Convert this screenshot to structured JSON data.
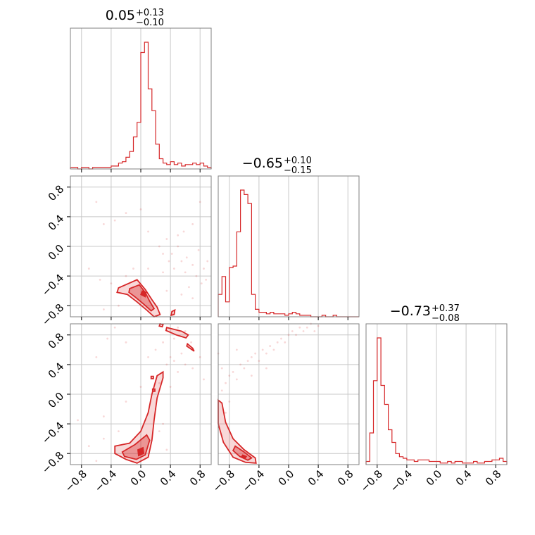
{
  "chart_data": {
    "type": "corner",
    "color": "#d62728",
    "parameters": [
      {
        "median": "0.05",
        "plus": "+0.13",
        "minus": "−0.10"
      },
      {
        "median": "−0.65",
        "plus": "+0.10",
        "minus": "−0.15"
      },
      {
        "median": "−0.73",
        "plus": "+0.37",
        "minus": "−0.08"
      }
    ],
    "range": [
      -0.95,
      0.95
    ],
    "ticks": [
      -0.8,
      -0.4,
      0.0,
      0.4,
      0.8
    ],
    "tick_labels": [
      "−0.8",
      "−0.4",
      "0.0",
      "0.4",
      "0.8"
    ],
    "grid": true,
    "histograms": [
      {
        "bin_edges": [
          -0.95,
          -0.9,
          -0.85,
          -0.8,
          -0.75,
          -0.7,
          -0.65,
          -0.6,
          -0.55,
          -0.5,
          -0.45,
          -0.4,
          -0.35,
          -0.3,
          -0.25,
          -0.2,
          -0.15,
          -0.1,
          -0.05,
          0.0,
          0.05,
          0.1,
          0.15,
          0.2,
          0.25,
          0.3,
          0.35,
          0.4,
          0.45,
          0.5,
          0.55,
          0.6,
          0.65,
          0.7,
          0.75,
          0.8,
          0.85,
          0.9,
          0.95
        ],
        "counts": [
          0.01,
          0.01,
          0.0,
          0.01,
          0.01,
          0.0,
          0.01,
          0.01,
          0.01,
          0.01,
          0.01,
          0.02,
          0.02,
          0.04,
          0.05,
          0.08,
          0.12,
          0.22,
          0.32,
          0.8,
          0.87,
          0.55,
          0.4,
          0.17,
          0.07,
          0.04,
          0.03,
          0.05,
          0.03,
          0.04,
          0.02,
          0.03,
          0.03,
          0.04,
          0.03,
          0.04,
          0.02,
          0.01
        ]
      },
      {
        "bin_edges": [
          -0.95,
          -0.9,
          -0.85,
          -0.8,
          -0.75,
          -0.7,
          -0.65,
          -0.6,
          -0.55,
          -0.5,
          -0.45,
          -0.4,
          -0.35,
          -0.3,
          -0.25,
          -0.2,
          -0.15,
          -0.1,
          -0.05,
          0.0,
          0.05,
          0.1,
          0.15,
          0.2,
          0.25,
          0.3,
          0.35,
          0.4,
          0.45,
          0.5,
          0.55,
          0.6,
          0.65,
          0.7,
          0.75,
          0.8,
          0.85,
          0.9,
          0.95
        ],
        "counts": [
          0.15,
          0.27,
          0.1,
          0.33,
          0.34,
          0.57,
          0.85,
          0.82,
          0.76,
          0.15,
          0.05,
          0.03,
          0.03,
          0.02,
          0.03,
          0.02,
          0.02,
          0.02,
          0.01,
          0.02,
          0.03,
          0.02,
          0.01,
          0.01,
          0.01,
          0.0,
          0.0,
          0.0,
          0.01,
          0.0,
          0.0,
          0.01,
          0.0,
          0.0,
          0.0,
          0.0,
          0.0,
          0.0
        ]
      },
      {
        "bin_edges": [
          -0.95,
          -0.9,
          -0.85,
          -0.8,
          -0.75,
          -0.7,
          -0.65,
          -0.6,
          -0.55,
          -0.5,
          -0.45,
          -0.4,
          -0.35,
          -0.3,
          -0.25,
          -0.2,
          -0.15,
          -0.1,
          -0.05,
          0.0,
          0.05,
          0.1,
          0.15,
          0.2,
          0.25,
          0.3,
          0.35,
          0.4,
          0.45,
          0.5,
          0.55,
          0.6,
          0.65,
          0.7,
          0.75,
          0.8,
          0.85,
          0.9,
          0.95
        ],
        "counts": [
          0.02,
          0.2,
          0.53,
          0.8,
          0.5,
          0.38,
          0.22,
          0.14,
          0.07,
          0.05,
          0.04,
          0.03,
          0.03,
          0.02,
          0.03,
          0.03,
          0.03,
          0.02,
          0.02,
          0.02,
          0.01,
          0.01,
          0.02,
          0.01,
          0.02,
          0.02,
          0.01,
          0.01,
          0.01,
          0.02,
          0.01,
          0.01,
          0.02,
          0.02,
          0.03,
          0.03,
          0.04,
          0.02
        ]
      }
    ],
    "scatter_panels": [
      {
        "row": 1,
        "col": 0,
        "contours": {
          "outer": [
            [
              -0.3,
              -0.56
            ],
            [
              -0.05,
              -0.45
            ],
            [
              0.06,
              -0.58
            ],
            [
              0.15,
              -0.72
            ],
            [
              0.22,
              -0.82
            ],
            [
              0.26,
              -0.92
            ],
            [
              0.18,
              -0.95
            ],
            [
              0.08,
              -0.86
            ],
            [
              -0.05,
              -0.75
            ],
            [
              -0.18,
              -0.65
            ],
            [
              -0.32,
              -0.62
            ]
          ],
          "inner": [
            [
              -0.15,
              -0.57
            ],
            [
              -0.02,
              -0.52
            ],
            [
              0.06,
              -0.62
            ],
            [
              0.12,
              -0.74
            ],
            [
              0.18,
              -0.84
            ],
            [
              0.14,
              -0.87
            ],
            [
              0.04,
              -0.78
            ],
            [
              -0.08,
              -0.68
            ],
            [
              -0.16,
              -0.62
            ]
          ],
          "core": [
            [
              0.02,
              -0.6
            ],
            [
              0.07,
              -0.62
            ],
            [
              0.06,
              -0.68
            ],
            [
              0.0,
              -0.65
            ]
          ],
          "islands": [
            [
              [
                0.42,
                -0.88
              ],
              [
                0.46,
                -0.86
              ],
              [
                0.45,
                -0.92
              ],
              [
                0.41,
                -0.93
              ]
            ]
          ]
        },
        "samples": [
          [
            0.8,
            0.6
          ],
          [
            -0.6,
            0.6
          ],
          [
            -0.5,
            0.3
          ],
          [
            -0.35,
            0.35
          ],
          [
            0.1,
            0.2
          ],
          [
            0.3,
            -0.1
          ],
          [
            0.42,
            -0.1
          ],
          [
            0.45,
            -0.3
          ],
          [
            0.5,
            0.0
          ],
          [
            0.55,
            -0.2
          ],
          [
            0.6,
            -0.35
          ],
          [
            0.62,
            -0.15
          ],
          [
            0.7,
            -0.25
          ],
          [
            0.75,
            -0.4
          ],
          [
            0.78,
            -0.05
          ],
          [
            0.82,
            -0.5
          ],
          [
            0.85,
            -0.3
          ],
          [
            0.88,
            -0.45
          ],
          [
            0.5,
            0.15
          ],
          [
            0.35,
            0.1
          ],
          [
            0.38,
            -0.2
          ],
          [
            0.65,
            -0.55
          ],
          [
            0.7,
            -0.7
          ],
          [
            0.3,
            -0.35
          ],
          [
            0.1,
            -0.3
          ],
          [
            -0.1,
            -0.3
          ],
          [
            -0.2,
            -0.4
          ],
          [
            -0.4,
            -0.5
          ],
          [
            -0.55,
            -0.45
          ],
          [
            -0.7,
            -0.3
          ],
          [
            -0.2,
            0.45
          ],
          [
            0.0,
            0.5
          ],
          [
            0.25,
            0.0
          ],
          [
            0.58,
            0.2
          ],
          [
            0.9,
            -0.2
          ],
          [
            -0.3,
            -0.8
          ],
          [
            -0.5,
            -0.85
          ],
          [
            0.35,
            -0.6
          ],
          [
            0.55,
            -0.65
          ],
          [
            0.7,
            0.3
          ]
        ]
      },
      {
        "row": 2,
        "col": 0,
        "contours": {
          "outer": [
            [
              -0.35,
              -0.7
            ],
            [
              -0.15,
              -0.66
            ],
            [
              0.0,
              -0.5
            ],
            [
              0.1,
              -0.25
            ],
            [
              0.15,
              0.0
            ],
            [
              0.22,
              0.25
            ],
            [
              0.3,
              0.3
            ],
            [
              0.3,
              0.22
            ],
            [
              0.22,
              -0.05
            ],
            [
              0.18,
              -0.35
            ],
            [
              0.15,
              -0.62
            ],
            [
              0.1,
              -0.85
            ],
            [
              -0.05,
              -0.93
            ],
            [
              -0.2,
              -0.88
            ],
            [
              -0.35,
              -0.8
            ]
          ],
          "inner": [
            [
              -0.25,
              -0.78
            ],
            [
              -0.08,
              -0.68
            ],
            [
              0.08,
              -0.55
            ],
            [
              0.12,
              -0.62
            ],
            [
              0.06,
              -0.82
            ],
            [
              -0.06,
              -0.88
            ],
            [
              -0.22,
              -0.84
            ]
          ],
          "core": [
            [
              -0.04,
              -0.75
            ],
            [
              0.03,
              -0.72
            ],
            [
              0.04,
              -0.8
            ],
            [
              -0.03,
              -0.83
            ]
          ],
          "islands": [
            [
              [
                0.35,
                0.9
              ],
              [
                0.55,
                0.85
              ],
              [
                0.64,
                0.8
              ],
              [
                0.61,
                0.76
              ],
              [
                0.48,
                0.8
              ],
              [
                0.34,
                0.86
              ]
            ],
            [
              [
                0.62,
                0.65
              ],
              [
                0.72,
                0.58
              ],
              [
                0.7,
                0.62
              ],
              [
                0.63,
                0.68
              ]
            ],
            [
              [
                0.26,
                0.95
              ],
              [
                0.3,
                0.94
              ],
              [
                0.29,
                0.91
              ],
              [
                0.25,
                0.92
              ]
            ],
            [
              [
                0.14,
                0.24
              ],
              [
                0.17,
                0.24
              ],
              [
                0.17,
                0.21
              ],
              [
                0.14,
                0.21
              ]
            ],
            [
              [
                0.16,
                0.07
              ],
              [
                0.19,
                0.07
              ],
              [
                0.19,
                0.04
              ],
              [
                0.16,
                0.04
              ]
            ]
          ]
        },
        "samples": [
          [
            -0.6,
            0.5
          ],
          [
            -0.45,
            0.75
          ],
          [
            -0.35,
            0.9
          ],
          [
            -0.2,
            0.7
          ],
          [
            0.1,
            0.5
          ],
          [
            0.2,
            0.6
          ],
          [
            0.3,
            0.7
          ],
          [
            0.4,
            0.5
          ],
          [
            0.45,
            0.45
          ],
          [
            0.5,
            0.3
          ],
          [
            0.55,
            0.55
          ],
          [
            0.6,
            0.4
          ],
          [
            0.7,
            0.35
          ],
          [
            0.8,
            0.5
          ],
          [
            0.85,
            0.2
          ],
          [
            0.4,
            0.1
          ],
          [
            0.2,
            -0.2
          ],
          [
            0.3,
            -0.4
          ],
          [
            -0.3,
            -0.5
          ],
          [
            -0.5,
            -0.6
          ],
          [
            -0.7,
            -0.7
          ],
          [
            -0.5,
            -0.3
          ],
          [
            -0.2,
            -0.1
          ],
          [
            0.0,
            0.1
          ],
          [
            0.45,
            0.75
          ],
          [
            0.6,
            0.85
          ],
          [
            0.68,
            0.7
          ],
          [
            0.5,
            0.9
          ],
          [
            0.35,
            0.4
          ],
          [
            0.25,
            0.15
          ],
          [
            -0.85,
            -0.35
          ],
          [
            -0.6,
            -0.9
          ],
          [
            0.25,
            -0.5
          ],
          [
            0.35,
            -0.75
          ]
        ]
      },
      {
        "row": 2,
        "col": 1,
        "contours": {
          "outer": [
            [
              -0.95,
              -0.08
            ],
            [
              -0.9,
              -0.12
            ],
            [
              -0.85,
              -0.38
            ],
            [
              -0.75,
              -0.6
            ],
            [
              -0.6,
              -0.75
            ],
            [
              -0.45,
              -0.86
            ],
            [
              -0.44,
              -0.93
            ],
            [
              -0.58,
              -0.92
            ],
            [
              -0.75,
              -0.85
            ],
            [
              -0.88,
              -0.65
            ],
            [
              -0.95,
              -0.4
            ]
          ],
          "inner": [
            [
              -0.72,
              -0.7
            ],
            [
              -0.6,
              -0.78
            ],
            [
              -0.5,
              -0.86
            ],
            [
              -0.55,
              -0.89
            ],
            [
              -0.66,
              -0.84
            ],
            [
              -0.75,
              -0.76
            ]
          ],
          "core": [
            [
              -0.62,
              -0.82
            ],
            [
              -0.57,
              -0.84
            ],
            [
              -0.59,
              -0.87
            ],
            [
              -0.64,
              -0.85
            ]
          ],
          "islands": []
        },
        "samples": [
          [
            -0.9,
            0.05
          ],
          [
            -0.85,
            0.15
          ],
          [
            -0.8,
            0.25
          ],
          [
            -0.75,
            0.3
          ],
          [
            -0.7,
            0.2
          ],
          [
            -0.65,
            0.4
          ],
          [
            -0.6,
            0.35
          ],
          [
            -0.55,
            0.45
          ],
          [
            -0.5,
            0.5
          ],
          [
            -0.45,
            0.55
          ],
          [
            -0.4,
            0.45
          ],
          [
            -0.35,
            0.6
          ],
          [
            -0.3,
            0.55
          ],
          [
            -0.25,
            0.65
          ],
          [
            -0.2,
            0.6
          ],
          [
            -0.15,
            0.7
          ],
          [
            -0.1,
            0.75
          ],
          [
            -0.05,
            0.7
          ],
          [
            0.0,
            0.8
          ],
          [
            0.05,
            0.85
          ],
          [
            0.1,
            0.8
          ],
          [
            0.15,
            0.9
          ],
          [
            0.2,
            0.85
          ],
          [
            0.25,
            0.9
          ],
          [
            0.3,
            0.95
          ],
          [
            -0.9,
            0.35
          ],
          [
            -0.95,
            0.55
          ],
          [
            -0.7,
            0.6
          ],
          [
            -0.5,
            0.25
          ],
          [
            -0.3,
            0.35
          ],
          [
            0.35,
            0.85
          ],
          [
            0.4,
            0.92
          ],
          [
            -0.8,
            -0.1
          ],
          [
            -0.85,
            -0.25
          ]
        ]
      }
    ]
  }
}
